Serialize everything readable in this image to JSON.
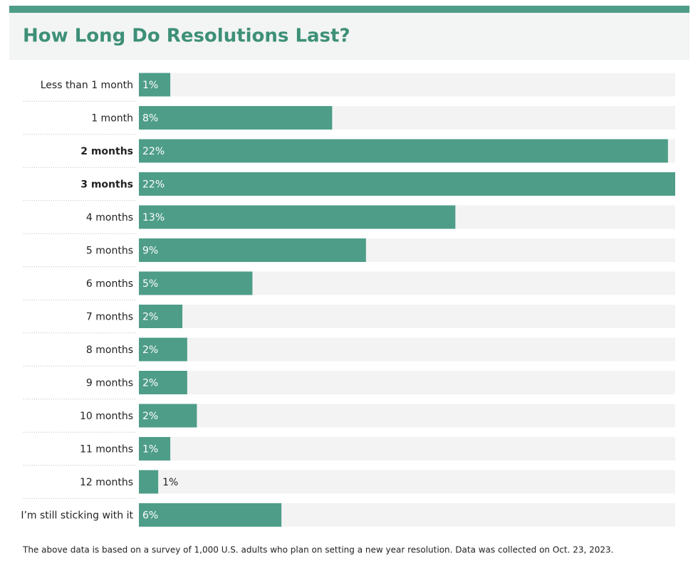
{
  "chart_data": {
    "type": "hbar",
    "title": "How Long Do Resolutions Last?",
    "categories": [
      "Less than 1 month",
      "1 month",
      "2 months",
      "3 months",
      "4 months",
      "5 months",
      "6 months",
      "7 months",
      "8 months",
      "9 months",
      "10 months",
      "11 months",
      "12 months",
      "I’m still sticking with it"
    ],
    "values": [
      1.3,
      8.0,
      21.9,
      22.2,
      13.1,
      9.4,
      4.7,
      1.8,
      2.0,
      2.0,
      2.4,
      1.3,
      0.8,
      5.9
    ],
    "value_labels": [
      "1%",
      "8%",
      "22%",
      "22%",
      "13%",
      "9%",
      "5%",
      "2%",
      "2%",
      "2%",
      "2%",
      "1%",
      "1%",
      "6%"
    ],
    "emphasis": [
      2,
      3
    ],
    "color": "#4e9d88",
    "xlim": [
      0,
      22.2
    ],
    "note": "The above data is based on a survey of 1,000 U.S. adults who plan on setting a new year resolution. Data was collected on Oct. 23, 2023."
  }
}
